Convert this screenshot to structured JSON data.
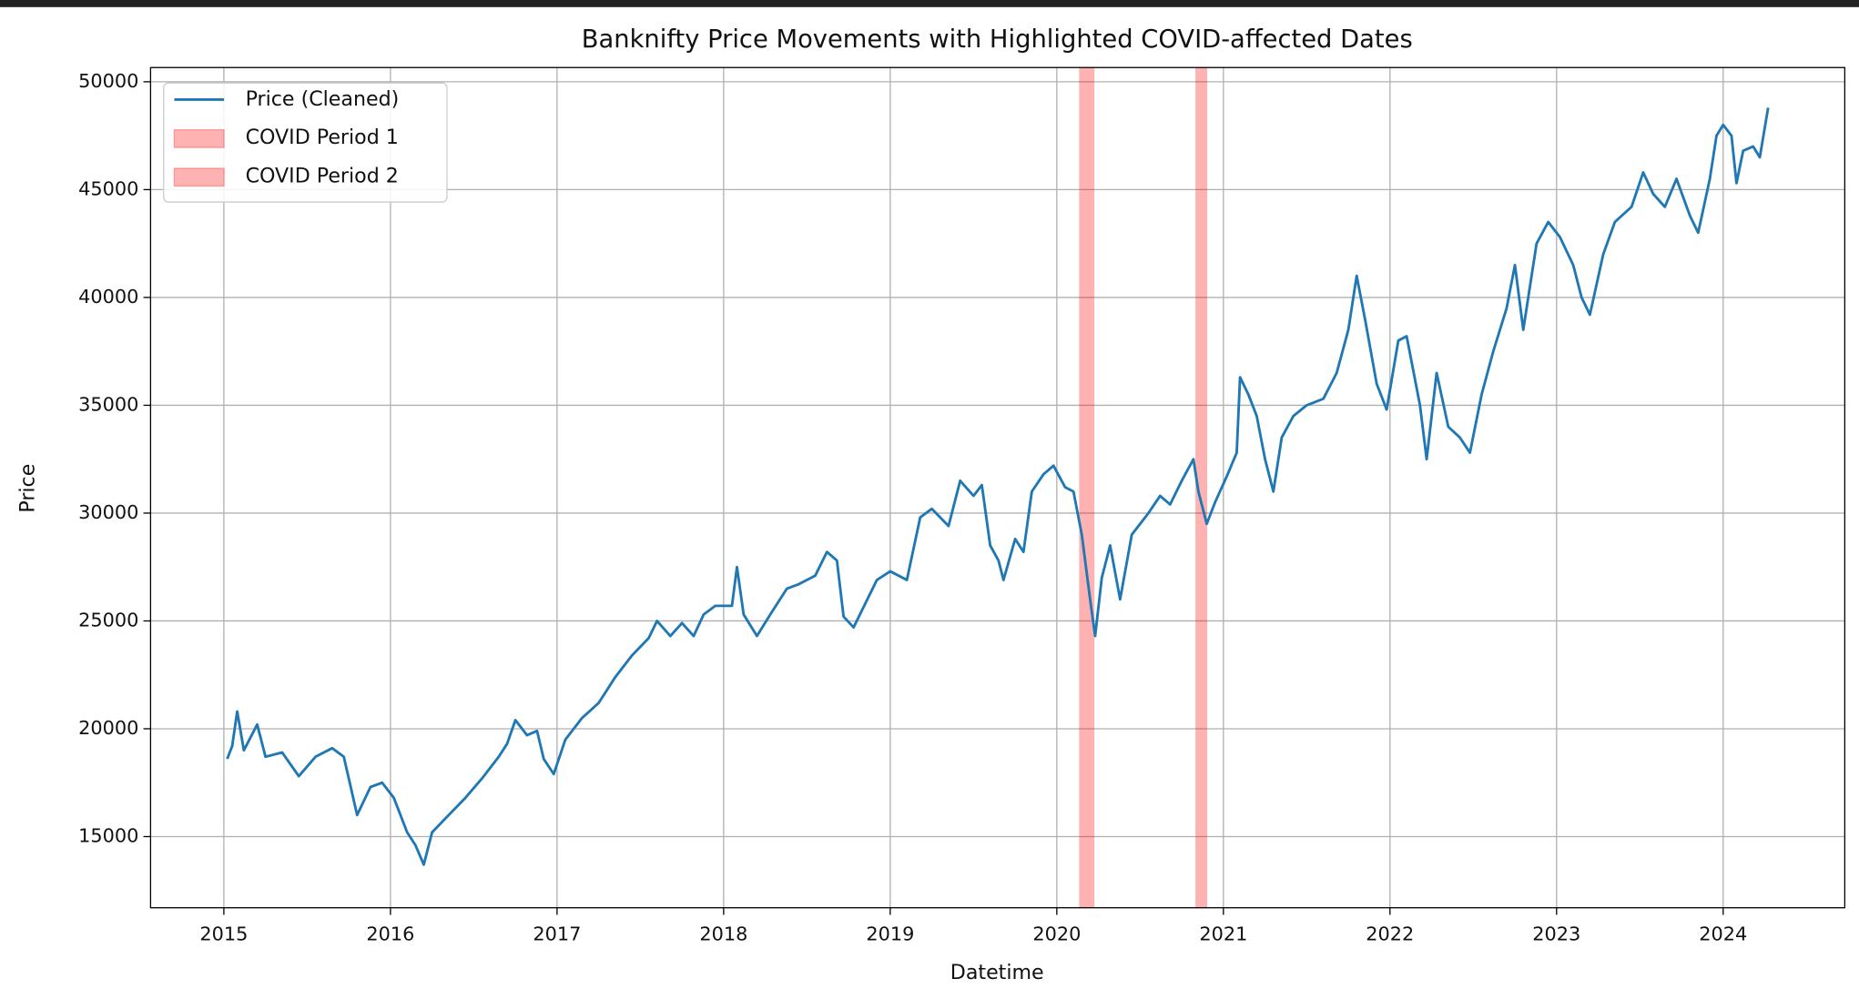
{
  "chart_data": {
    "type": "line",
    "title": "Banknifty Price Movements with Highlighted COVID-affected Dates",
    "x_label": "Datetime",
    "y_label": "Price",
    "x": [
      2015.02,
      2015.05,
      2015.08,
      2015.12,
      2015.2,
      2015.25,
      2015.35,
      2015.45,
      2015.55,
      2015.65,
      2015.72,
      2015.8,
      2015.88,
      2015.95,
      2016.02,
      2016.1,
      2016.15,
      2016.2,
      2016.25,
      2016.35,
      2016.45,
      2016.55,
      2016.65,
      2016.7,
      2016.75,
      2016.82,
      2016.88,
      2016.92,
      2016.98,
      2017.05,
      2017.15,
      2017.25,
      2017.35,
      2017.45,
      2017.55,
      2017.6,
      2017.68,
      2017.75,
      2017.82,
      2017.88,
      2017.95,
      2018.05,
      2018.08,
      2018.12,
      2018.2,
      2018.28,
      2018.38,
      2018.45,
      2018.55,
      2018.62,
      2018.68,
      2018.72,
      2018.78,
      2018.85,
      2018.92,
      2019.0,
      2019.1,
      2019.18,
      2019.25,
      2019.35,
      2019.42,
      2019.5,
      2019.55,
      2019.6,
      2019.65,
      2019.68,
      2019.75,
      2019.8,
      2019.85,
      2019.92,
      2019.98,
      2020.05,
      2020.1,
      2020.15,
      2020.2,
      2020.23,
      2020.27,
      2020.32,
      2020.38,
      2020.45,
      2020.55,
      2020.62,
      2020.68,
      2020.75,
      2020.82,
      2020.85,
      2020.9,
      2020.95,
      2021.02,
      2021.08,
      2021.1,
      2021.15,
      2021.2,
      2021.25,
      2021.3,
      2021.35,
      2021.42,
      2021.5,
      2021.6,
      2021.68,
      2021.75,
      2021.8,
      2021.85,
      2021.92,
      2021.98,
      2022.05,
      2022.1,
      2022.18,
      2022.22,
      2022.28,
      2022.35,
      2022.42,
      2022.48,
      2022.55,
      2022.62,
      2022.7,
      2022.75,
      2022.8,
      2022.88,
      2022.95,
      2023.02,
      2023.1,
      2023.15,
      2023.2,
      2023.28,
      2023.35,
      2023.45,
      2023.52,
      2023.58,
      2023.65,
      2023.72,
      2023.8,
      2023.85,
      2023.92,
      2023.96,
      2024.0,
      2024.05,
      2024.08,
      2024.12,
      2024.18,
      2024.22,
      2024.27
    ],
    "series": [
      {
        "name": "Price (Cleaned)",
        "color": "#1f77b4",
        "values": [
          18600,
          19200,
          20800,
          19000,
          20200,
          18700,
          18900,
          17800,
          18700,
          19100,
          18700,
          16000,
          17300,
          17500,
          16800,
          15200,
          14600,
          13700,
          15200,
          16000,
          16800,
          17700,
          18700,
          19300,
          20400,
          19700,
          19900,
          18600,
          17900,
          19500,
          20500,
          21200,
          22400,
          23400,
          24200,
          25000,
          24300,
          24900,
          24300,
          25300,
          25700,
          25700,
          27500,
          25300,
          24300,
          25300,
          26500,
          26700,
          27100,
          28200,
          27800,
          25200,
          24700,
          25800,
          26900,
          27300,
          26900,
          29800,
          30200,
          29400,
          31500,
          30800,
          31300,
          28500,
          27800,
          26900,
          28800,
          28200,
          31000,
          31800,
          32200,
          31200,
          31000,
          29000,
          26000,
          24300,
          27000,
          28500,
          26000,
          29000,
          30000,
          30800,
          30400,
          31500,
          32500,
          31000,
          29500,
          30500,
          31700,
          32800,
          36300,
          35500,
          34500,
          32500,
          31000,
          33500,
          34500,
          35000,
          35300,
          36500,
          38500,
          41000,
          39000,
          36000,
          34800,
          38000,
          38200,
          35000,
          32500,
          36500,
          34000,
          33500,
          32800,
          35500,
          37500,
          39500,
          41500,
          38500,
          42500,
          43500,
          42800,
          41500,
          40000,
          39200,
          42000,
          43500,
          44200,
          45800,
          44800,
          44200,
          45500,
          43800,
          43000,
          45500,
          47500,
          48000,
          47500,
          45300,
          46800,
          47000,
          46500,
          48800
        ]
      }
    ],
    "spans": [
      {
        "name": "COVID Period 1",
        "color": "#ff0000",
        "start": 2020.134,
        "end": 2020.226
      },
      {
        "name": "COVID Period 2",
        "color": "#ff0000",
        "start": 2020.832,
        "end": 2020.903
      }
    ],
    "xlim": [
      2014.56,
      2024.73
    ],
    "xticks": [
      2015,
      2016,
      2017,
      2018,
      2019,
      2020,
      2021,
      2022,
      2023,
      2024
    ],
    "ylim": [
      11700,
      50660
    ],
    "yticks": [
      15000,
      20000,
      25000,
      30000,
      35000,
      40000,
      45000,
      50000
    ],
    "grid": true,
    "legend": "upper left"
  }
}
